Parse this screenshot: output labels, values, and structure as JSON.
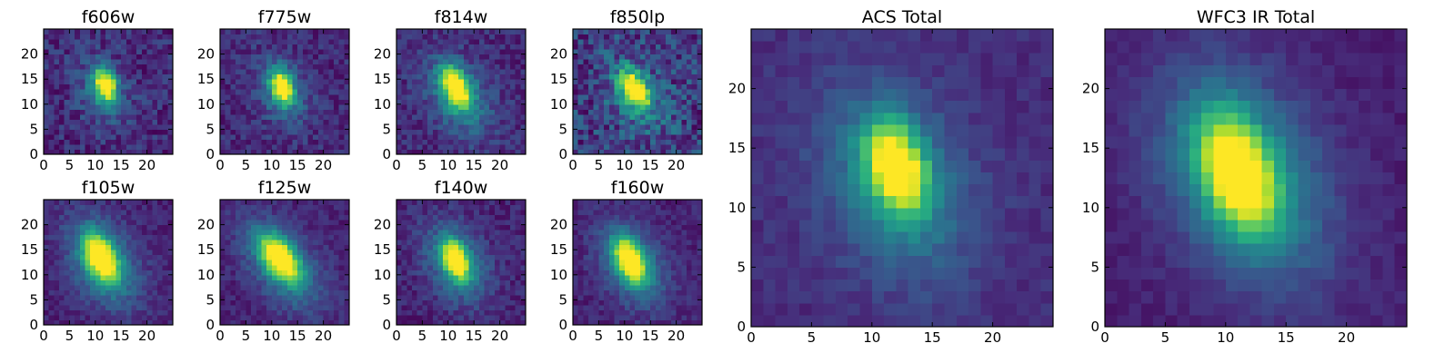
{
  "figure": {
    "colormap": "viridis",
    "image_size": [
      25,
      25
    ],
    "colors": {
      "background": "#ffffff",
      "frame": "#000000",
      "cmap_low": "#440154",
      "cmap_mid": "#21918c",
      "cmap_high": "#fde725"
    }
  },
  "chart_data": [
    {
      "type": "heatmap",
      "title": "f606w",
      "xlim": [
        0,
        25
      ],
      "ylim": [
        0,
        25
      ],
      "xticks": [
        0,
        5,
        10,
        15,
        20
      ],
      "yticks": [
        0,
        5,
        10,
        15,
        20
      ],
      "peak": {
        "x": 11.5,
        "y": 13.5
      },
      "spread": {
        "x": 1.4,
        "y": 2.2
      },
      "halo": {
        "x": 11,
        "y": 12,
        "spread": 4.5,
        "amp": 0.28
      },
      "background": 0.12,
      "noise": 0.12,
      "tilt": -0.15,
      "seed": 11
    },
    {
      "type": "heatmap",
      "title": "f775w",
      "xlim": [
        0,
        25
      ],
      "ylim": [
        0,
        25
      ],
      "xticks": [
        0,
        5,
        10,
        15,
        20
      ],
      "yticks": [
        0,
        5,
        10,
        15,
        20
      ],
      "peak": {
        "x": 11.5,
        "y": 13
      },
      "spread": {
        "x": 1.4,
        "y": 2.3
      },
      "halo": {
        "x": 11.5,
        "y": 12,
        "spread": 4.5,
        "amp": 0.3
      },
      "background": 0.12,
      "noise": 0.1,
      "tilt": -0.2,
      "seed": 23
    },
    {
      "type": "heatmap",
      "title": "f814w",
      "xlim": [
        0,
        25
      ],
      "ylim": [
        0,
        25
      ],
      "xticks": [
        0,
        5,
        10,
        15,
        20
      ],
      "yticks": [
        0,
        5,
        10,
        15,
        20
      ],
      "peak": {
        "x": 11,
        "y": 13
      },
      "spread": {
        "x": 1.7,
        "y": 2.8
      },
      "halo": {
        "x": 11.5,
        "y": 11,
        "spread": 5.5,
        "amp": 0.35
      },
      "background": 0.12,
      "noise": 0.1,
      "tilt": -0.3,
      "seed": 37
    },
    {
      "type": "heatmap",
      "title": "f850lp",
      "xlim": [
        0,
        25
      ],
      "ylim": [
        0,
        25
      ],
      "xticks": [
        0,
        5,
        10,
        15,
        20
      ],
      "yticks": [
        0,
        5,
        10,
        15,
        20
      ],
      "peak": {
        "x": 11.5,
        "y": 12.5
      },
      "spread": {
        "x": 1.7,
        "y": 2.4
      },
      "halo": {
        "x": 12,
        "y": 11,
        "spread": 5,
        "amp": 0.3
      },
      "background": 0.18,
      "noise": 0.18,
      "tilt": -0.3,
      "seed": 51
    },
    {
      "type": "heatmap",
      "title": "f105w",
      "xlim": [
        0,
        25
      ],
      "ylim": [
        0,
        25
      ],
      "xticks": [
        0,
        5,
        10,
        15,
        20
      ],
      "yticks": [
        0,
        5,
        10,
        15,
        20
      ],
      "peak": {
        "x": 10.5,
        "y": 13
      },
      "spread": {
        "x": 2.0,
        "y": 3.2
      },
      "halo": {
        "x": 11,
        "y": 12,
        "spread": 6,
        "amp": 0.42
      },
      "background": 0.1,
      "noise": 0.07,
      "tilt": -0.3,
      "seed": 67
    },
    {
      "type": "heatmap",
      "title": "f125w",
      "xlim": [
        0,
        25
      ],
      "ylim": [
        0,
        25
      ],
      "xticks": [
        0,
        5,
        10,
        15,
        20
      ],
      "yticks": [
        0,
        5,
        10,
        15,
        20
      ],
      "peak": {
        "x": 11,
        "y": 13
      },
      "spread": {
        "x": 2.2,
        "y": 3.0
      },
      "halo": {
        "x": 11.5,
        "y": 11.5,
        "spread": 6,
        "amp": 0.4
      },
      "background": 0.1,
      "noise": 0.07,
      "tilt": -0.45,
      "seed": 79
    },
    {
      "type": "heatmap",
      "title": "f140w",
      "xlim": [
        0,
        25
      ],
      "ylim": [
        0,
        25
      ],
      "xticks": [
        0,
        5,
        10,
        15,
        20
      ],
      "yticks": [
        0,
        5,
        10,
        15,
        20
      ],
      "peak": {
        "x": 11,
        "y": 12.5
      },
      "spread": {
        "x": 1.6,
        "y": 2.6
      },
      "halo": {
        "x": 11,
        "y": 12,
        "spread": 5.5,
        "amp": 0.38
      },
      "background": 0.1,
      "noise": 0.08,
      "tilt": -0.25,
      "seed": 97
    },
    {
      "type": "heatmap",
      "title": "f160w",
      "xlim": [
        0,
        25
      ],
      "ylim": [
        0,
        25
      ],
      "xticks": [
        0,
        5,
        10,
        15,
        20
      ],
      "yticks": [
        0,
        5,
        10,
        15,
        20
      ],
      "peak": {
        "x": 10.5,
        "y": 12.5
      },
      "spread": {
        "x": 1.8,
        "y": 3.0
      },
      "halo": {
        "x": 11,
        "y": 11.5,
        "spread": 5.5,
        "amp": 0.4
      },
      "background": 0.1,
      "noise": 0.07,
      "tilt": -0.3,
      "seed": 113
    },
    {
      "type": "heatmap",
      "title": "ACS Total",
      "xlim": [
        0,
        25
      ],
      "ylim": [
        0,
        25
      ],
      "xticks": [
        0,
        5,
        10,
        15,
        20
      ],
      "yticks": [
        0,
        5,
        10,
        15,
        20
      ],
      "peak": {
        "x": 11.5,
        "y": 13
      },
      "spread": {
        "x": 1.6,
        "y": 2.6
      },
      "halo": {
        "x": 11.5,
        "y": 11.5,
        "spread": 5.5,
        "amp": 0.35
      },
      "background": 0.13,
      "noise": 0.05,
      "tilt": -0.2,
      "seed": 131
    },
    {
      "type": "heatmap",
      "title": "WFC3 IR Total",
      "xlim": [
        0,
        25
      ],
      "ylim": [
        0,
        25
      ],
      "xticks": [
        0,
        5,
        10,
        15,
        20
      ],
      "yticks": [
        0,
        5,
        10,
        15,
        20
      ],
      "peak": {
        "x": 10.5,
        "y": 12.5
      },
      "spread": {
        "x": 2.0,
        "y": 3.3
      },
      "halo": {
        "x": 11,
        "y": 12,
        "spread": 6.5,
        "amp": 0.42
      },
      "background": 0.08,
      "noise": 0.04,
      "tilt": -0.25,
      "seed": 149
    }
  ]
}
